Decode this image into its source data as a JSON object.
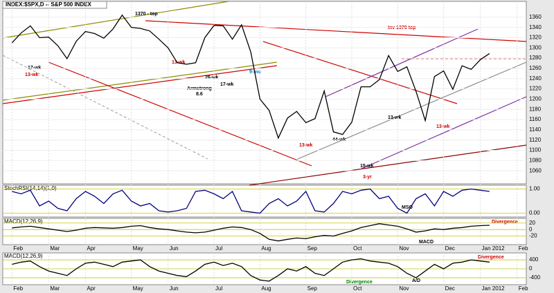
{
  "chart_data": [
    {
      "type": "line",
      "title": "INDEX:$SPX,D -- S&P 500 INDEX",
      "x": [
        0,
        1,
        2,
        3,
        4,
        5,
        6,
        7,
        8,
        9,
        10,
        11,
        12,
        13,
        14,
        15,
        16,
        17,
        18,
        19,
        20,
        21,
        22,
        23,
        24,
        25,
        26,
        27,
        28,
        29,
        30,
        31,
        32,
        33,
        34,
        35,
        36,
        37,
        38,
        39,
        40,
        41,
        42,
        43,
        44,
        45,
        46,
        47,
        48,
        49,
        50,
        51,
        52
      ],
      "series": [
        {
          "name": "$SPX",
          "color": "#000000",
          "values": [
            1310,
            1329,
            1343,
            1320,
            1321,
            1304,
            1279,
            1313,
            1332,
            1328,
            1319,
            1337,
            1364,
            1340,
            1338,
            1333,
            1317,
            1300,
            1271,
            1268,
            1271,
            1320,
            1344,
            1343,
            1317,
            1345,
            1292,
            1200,
            1178,
            1124,
            1163,
            1176,
            1154,
            1162,
            1216,
            1136,
            1131,
            1155,
            1224,
            1224,
            1238,
            1285,
            1254,
            1263,
            1215,
            1158,
            1244,
            1255,
            1219,
            1265,
            1258,
            1277,
            1289
          ]
        }
      ],
      "xlim": [
        -1,
        56
      ],
      "xticks": [
        {
          "value": 0,
          "label": "Feb"
        },
        {
          "value": 4,
          "label": "Mar"
        },
        {
          "value": 8,
          "label": "Apr"
        },
        {
          "value": 13,
          "label": "May"
        },
        {
          "value": 17,
          "label": "Jun"
        },
        {
          "value": 22,
          "label": "Jul"
        },
        {
          "value": 27,
          "label": "Aug"
        },
        {
          "value": 32,
          "label": "Sep"
        },
        {
          "value": 37,
          "label": "Oct"
        },
        {
          "value": 42,
          "label": "Nov"
        },
        {
          "value": 47,
          "label": "Dec"
        },
        {
          "value": 51,
          "label": "Jan 2012"
        },
        {
          "value": 55,
          "label": "Feb"
        }
      ],
      "ylim": [
        1040,
        1380
      ],
      "yticks": [
        1060,
        1080,
        1100,
        1120,
        1140,
        1160,
        1180,
        1200,
        1220,
        1240,
        1260,
        1280,
        1300,
        1320,
        1340,
        1360
      ],
      "grid": true,
      "annotations": [
        "1370 - top",
        "Inv 1370 top",
        "13-wk",
        "17-wk",
        "13-wk",
        "26-wk",
        "Armstrong",
        "8.6",
        "17-wk",
        "9-mo",
        "13-wk",
        "44-wk",
        "15-wk",
        "3-yr",
        "13-wk",
        "13-wk"
      ]
    },
    {
      "type": "line",
      "title": "StochRSI(14,14)(1,0)",
      "x": [
        0,
        1,
        2,
        3,
        4,
        5,
        6,
        7,
        8,
        9,
        10,
        11,
        12,
        13,
        14,
        15,
        16,
        17,
        18,
        19,
        20,
        21,
        22,
        23,
        24,
        25,
        26,
        27,
        28,
        29,
        30,
        31,
        32,
        33,
        34,
        35,
        36,
        37,
        38,
        39,
        40,
        41,
        42,
        43,
        44,
        45,
        46,
        47,
        48,
        49,
        50,
        51,
        52
      ],
      "series": [
        {
          "name": "StochRSI",
          "color": "#000080",
          "values": [
            0.9,
            0.8,
            0.95,
            0.3,
            0.5,
            0.2,
            0.1,
            0.6,
            0.9,
            0.7,
            0.4,
            0.8,
            0.95,
            0.5,
            0.3,
            0.4,
            0.1,
            0.05,
            0.1,
            0.2,
            0.9,
            0.95,
            0.8,
            0.6,
            0.9,
            0.1,
            0.05,
            0,
            0.4,
            0.6,
            0.3,
            0.5,
            0.9,
            0.1,
            0.05,
            0.4,
            0.9,
            0.8,
            0.95,
            1,
            0.6,
            0.7,
            0.2,
            0,
            0.6,
            0.8,
            0.3,
            0.9,
            0.7,
            0.95,
            1,
            0.95,
            0.9
          ]
        }
      ],
      "xlim": [
        -1,
        56
      ],
      "ylim": [
        -0.1,
        1.1
      ],
      "yticks": [
        {
          "value": 0,
          "label": "0.00"
        },
        {
          "value": 1,
          "label": "1.00"
        }
      ],
      "annotations": [
        "MSO"
      ]
    },
    {
      "type": "line",
      "title": "MACD(12,26,9)",
      "x": [
        0,
        1,
        2,
        3,
        4,
        5,
        6,
        7,
        8,
        9,
        10,
        11,
        12,
        13,
        14,
        15,
        16,
        17,
        18,
        19,
        20,
        21,
        22,
        23,
        24,
        25,
        26,
        27,
        28,
        29,
        30,
        31,
        32,
        33,
        34,
        35,
        36,
        37,
        38,
        39,
        40,
        41,
        42,
        43,
        44,
        45,
        46,
        47,
        48,
        49,
        50,
        51,
        52
      ],
      "series": [
        {
          "name": "MACD",
          "color": "#000000",
          "values": [
            5,
            8,
            10,
            6,
            2,
            -2,
            -6,
            -2,
            4,
            6,
            5,
            4,
            6,
            10,
            12,
            6,
            2,
            0,
            -4,
            -8,
            -10,
            -8,
            -2,
            4,
            8,
            6,
            0,
            -12,
            -30,
            -35,
            -30,
            -26,
            -28,
            -22,
            -18,
            -20,
            -12,
            -4,
            6,
            12,
            18,
            14,
            10,
            2,
            -8,
            -4,
            2,
            0,
            4,
            6,
            10,
            12,
            13
          ]
        }
      ],
      "xlim": [
        -1,
        56
      ],
      "ylim": [
        -42,
        30
      ],
      "yticks": [
        -20,
        0,
        20
      ],
      "annotations": [
        "MACD",
        "Divergence"
      ]
    },
    {
      "type": "line",
      "title": "MACD(12,26,9)",
      "x": [
        0,
        1,
        2,
        3,
        4,
        5,
        6,
        7,
        8,
        9,
        10,
        11,
        12,
        13,
        14,
        15,
        16,
        17,
        18,
        19,
        20,
        21,
        22,
        23,
        24,
        25,
        26,
        27,
        28,
        29,
        30,
        31,
        32,
        33,
        34,
        35,
        36,
        37,
        38,
        39,
        40,
        41,
        42,
        43,
        44,
        45,
        46,
        47,
        48,
        49,
        50,
        51,
        52
      ],
      "series": [
        {
          "name": "A/D",
          "color": "#000000",
          "values": [
            200,
            300,
            350,
            100,
            -100,
            -200,
            -300,
            0,
            250,
            300,
            200,
            100,
            300,
            350,
            400,
            100,
            -100,
            -200,
            -300,
            -350,
            -100,
            200,
            300,
            150,
            250,
            100,
            -300,
            -500,
            -550,
            -300,
            0,
            -100,
            100,
            -200,
            -300,
            0,
            300,
            400,
            450,
            350,
            300,
            250,
            100,
            -200,
            -400,
            -100,
            200,
            0,
            250,
            300,
            400,
            350,
            300
          ]
        }
      ],
      "xlim": [
        -1,
        56
      ],
      "ylim": [
        -650,
        650
      ],
      "yticks": [
        -400,
        0,
        400
      ],
      "annotations": [
        "A/D",
        "Divergence",
        "Divergence"
      ]
    }
  ]
}
